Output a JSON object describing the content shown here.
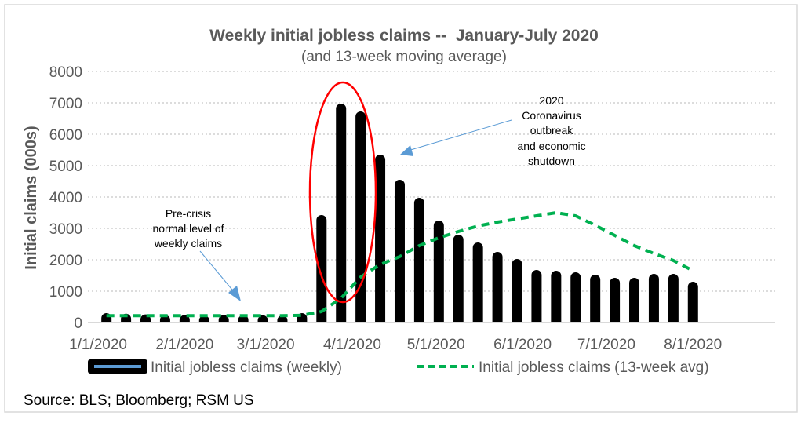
{
  "chart_data": {
    "type": "bar",
    "title": "Weekly initial jobless claims --  January-July 2020",
    "subtitle": "(and 13-week moving average)",
    "ylabel": "Initial claims (000s)",
    "xlabel": "",
    "ylim": [
      0,
      8000
    ],
    "yticks": [
      "0",
      "1000",
      "2000",
      "3000",
      "4000",
      "5000",
      "6000",
      "7000",
      "8000"
    ],
    "xlim": [
      "2020-01-01",
      "2020-08-30"
    ],
    "xticks": [
      {
        "date": "2020-01-01",
        "label": "1/1/2020"
      },
      {
        "date": "2020-02-01",
        "label": "2/1/2020"
      },
      {
        "date": "2020-03-01",
        "label": "3/1/2020"
      },
      {
        "date": "2020-04-01",
        "label": "4/1/2020"
      },
      {
        "date": "2020-05-01",
        "label": "5/1/2020"
      },
      {
        "date": "2020-06-01",
        "label": "6/1/2020"
      },
      {
        "date": "2020-07-01",
        "label": "7/1/2020"
      },
      {
        "date": "2020-08-01",
        "label": "8/1/2020"
      }
    ],
    "grid": true,
    "legend_placement": "bottom",
    "x": [
      "2020-01-04",
      "2020-01-11",
      "2020-01-18",
      "2020-01-25",
      "2020-02-01",
      "2020-02-08",
      "2020-02-15",
      "2020-02-22",
      "2020-02-29",
      "2020-03-07",
      "2020-03-14",
      "2020-03-21",
      "2020-03-28",
      "2020-04-04",
      "2020-04-11",
      "2020-04-18",
      "2020-04-25",
      "2020-05-02",
      "2020-05-09",
      "2020-05-16",
      "2020-05-23",
      "2020-05-30",
      "2020-06-06",
      "2020-06-13",
      "2020-06-20",
      "2020-06-27",
      "2020-07-04",
      "2020-07-11",
      "2020-07-18",
      "2020-07-25",
      "2020-08-01"
    ],
    "series": [
      {
        "name": "Initial jobless claims (weekly)",
        "type": "bar",
        "color": "#000000",
        "legend_color": "#5B9BD5",
        "values": [
          300,
          280,
          260,
          240,
          240,
          230,
          240,
          240,
          230,
          230,
          300,
          3425,
          6975,
          6725,
          5350,
          4550,
          3975,
          3250,
          2800,
          2550,
          2250,
          2025,
          1675,
          1650,
          1600,
          1525,
          1425,
          1425,
          1550,
          1550,
          1300
        ]
      },
      {
        "name": "Initial jobless claims (13-week avg)",
        "type": "line",
        "style": "dashed",
        "color": "#00B050",
        "values": [
          220,
          220,
          220,
          220,
          220,
          220,
          220,
          220,
          220,
          220,
          230,
          350,
          775,
          1450,
          1850,
          2100,
          2450,
          2700,
          2900,
          3075,
          3200,
          3300,
          3400,
          3500,
          3400,
          3100,
          2775,
          2450,
          2200,
          1975,
          1650
        ]
      }
    ],
    "annotations": [
      {
        "text": [
          "Pre-crisis",
          "normal level of",
          "weekly claims"
        ],
        "arrow_color": "#5B9BD5"
      },
      {
        "text": [
          "2020",
          "Coronavirus",
          "outbreak",
          "and economic",
          "shutdown"
        ],
        "arrow_color": "#5B9BD5"
      }
    ],
    "highlight_ellipse_color": "#FF0000"
  },
  "source": "Source: BLS; Bloomberg; RSM US"
}
